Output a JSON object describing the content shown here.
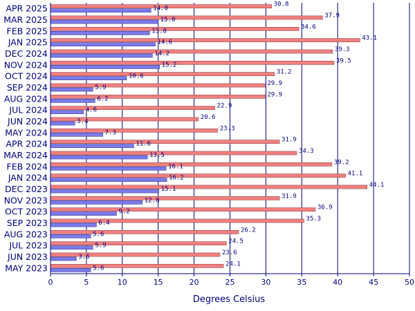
{
  "chart_data": {
    "type": "bar",
    "orientation": "horizontal",
    "xlabel": "Degrees Celsius",
    "ylabel": "",
    "title": "",
    "xlim": [
      0,
      50
    ],
    "xticks": [
      0,
      5,
      10,
      15,
      20,
      25,
      30,
      35,
      40,
      45,
      50
    ],
    "grid": "vertical",
    "legend": "none",
    "categories": [
      "APR 2025",
      "MAR 2025",
      "FEB 2025",
      "JAN 2025",
      "DEC 2024",
      "NOV 2024",
      "OCT 2024",
      "SEP 2024",
      "AUG 2024",
      "JUL 2024",
      "JUN 2024",
      "MAY 2024",
      "APR 2024",
      "MAR 2024",
      "FEB 2024",
      "JAN 2024",
      "DEC 2023",
      "NOV 2023",
      "OCT 2023",
      "SEP 2023",
      "AUG 2023",
      "JUL 2023",
      "JUN 2023",
      "MAY 2023"
    ],
    "series": [
      {
        "color": "#f08080",
        "values": [
          30.8,
          37.9,
          34.6,
          43.1,
          39.3,
          39.5,
          31.2,
          29.9,
          29.9,
          22.9,
          20.6,
          23.3,
          31.9,
          34.3,
          39.2,
          41.1,
          44.1,
          31.9,
          36.9,
          35.3,
          26.2,
          24.5,
          23.6,
          24.1
        ]
      },
      {
        "color": "#7b7bea",
        "values": [
          14.0,
          15.0,
          13.8,
          14.6,
          14.2,
          15.2,
          10.6,
          5.9,
          6.2,
          4.6,
          3.4,
          7.3,
          11.6,
          13.5,
          16.1,
          16.2,
          15.1,
          12.8,
          9.2,
          6.4,
          5.6,
          5.9,
          3.6,
          5.6
        ]
      }
    ]
  },
  "colors": {
    "axis": "#000080",
    "grid": "#000080",
    "text": "#000080",
    "bar_stroke": "#8b3a3a",
    "bar2_stroke": "#2b2b8a"
  }
}
